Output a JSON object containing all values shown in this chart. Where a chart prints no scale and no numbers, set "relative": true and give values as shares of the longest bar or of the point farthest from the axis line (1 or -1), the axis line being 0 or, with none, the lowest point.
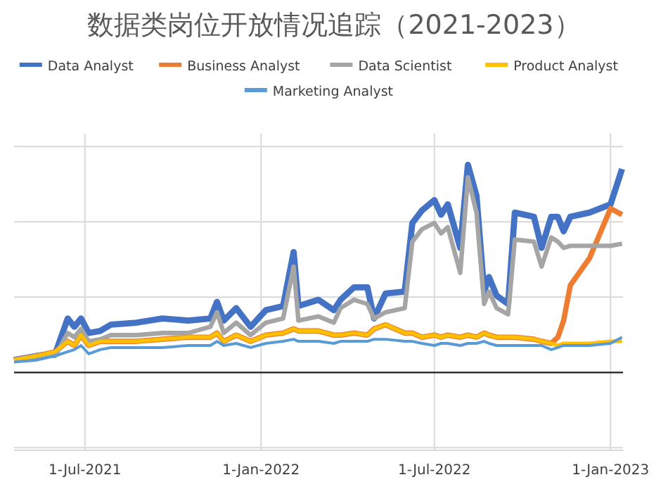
{
  "chart_data": {
    "type": "line",
    "title": "数据类岗位开放情况追踪（2021-2023）",
    "relative": true,
    "legend": "top",
    "grid": true,
    "line_style": "solid",
    "marker": "none",
    "xlim": [
      "2021-04-18",
      "2023-01-14"
    ],
    "xticks": [
      {
        "value": "2021-07-01",
        "label": "1-Jul-2021"
      },
      {
        "value": "2022-01-01",
        "label": "1-Jan-2022"
      },
      {
        "value": "2022-07-01",
        "label": "1-Jul-2022"
      },
      {
        "value": "2023-01-01",
        "label": "1-Jan-2023"
      }
    ],
    "x": [
      "2021-04-18",
      "2021-05-12",
      "2021-05-31",
      "2021-06-13",
      "2021-06-20",
      "2021-06-27",
      "2021-07-05",
      "2021-07-17",
      "2021-07-28",
      "2021-08-24",
      "2021-09-20",
      "2021-10-17",
      "2021-11-09",
      "2021-11-16",
      "2021-11-23",
      "2021-12-06",
      "2021-12-21",
      "2022-01-06",
      "2022-01-24",
      "2022-02-04",
      "2022-02-09",
      "2022-03-02",
      "2022-03-18",
      "2022-03-25",
      "2022-04-08",
      "2022-04-22",
      "2022-04-29",
      "2022-05-11",
      "2022-05-31",
      "2022-06-08",
      "2022-06-18",
      "2022-07-01",
      "2022-07-08",
      "2022-07-15",
      "2022-07-28",
      "2022-08-05",
      "2022-08-14",
      "2022-08-22",
      "2022-08-27",
      "2022-09-04",
      "2022-09-16",
      "2022-09-23",
      "2022-10-13",
      "2022-10-21",
      "2022-10-31",
      "2022-11-07",
      "2022-11-13",
      "2022-11-20",
      "2022-12-10",
      "2023-01-01",
      "2023-01-13"
    ],
    "series": [
      {
        "name": "Data Analyst",
        "color": "#4472c4",
        "values": [
          0.06,
          0.08,
          0.09,
          0.26,
          0.22,
          0.26,
          0.19,
          0.2,
          0.23,
          0.24,
          0.26,
          0.25,
          0.26,
          0.34,
          0.25,
          0.31,
          0.22,
          0.3,
          0.32,
          0.58,
          0.32,
          0.35,
          0.3,
          0.35,
          0.41,
          0.41,
          0.26,
          0.38,
          0.39,
          0.72,
          0.78,
          0.83,
          0.76,
          0.81,
          0.6,
          1.0,
          0.85,
          0.39,
          0.46,
          0.37,
          0.33,
          0.77,
          0.75,
          0.6,
          0.75,
          0.75,
          0.68,
          0.75,
          0.77,
          0.81,
          0.98
        ]
      },
      {
        "name": "Business Analyst",
        "color": "#ed7d31",
        "values": [
          0.06,
          0.08,
          0.1,
          0.15,
          0.13,
          0.18,
          0.13,
          0.15,
          0.15,
          0.15,
          0.16,
          0.17,
          0.17,
          0.19,
          0.15,
          0.18,
          0.15,
          0.18,
          0.19,
          0.21,
          0.2,
          0.2,
          0.18,
          0.18,
          0.19,
          0.18,
          0.21,
          0.23,
          0.19,
          0.19,
          0.17,
          0.18,
          0.17,
          0.18,
          0.17,
          0.18,
          0.17,
          0.19,
          0.18,
          0.17,
          0.17,
          0.17,
          0.16,
          0.15,
          0.14,
          0.17,
          0.25,
          0.42,
          0.55,
          0.79,
          0.76
        ]
      },
      {
        "name": "Data Scientist",
        "color": "#a5a5a5",
        "values": [
          0.06,
          0.08,
          0.08,
          0.19,
          0.17,
          0.21,
          0.15,
          0.16,
          0.18,
          0.18,
          0.19,
          0.19,
          0.22,
          0.29,
          0.19,
          0.24,
          0.18,
          0.24,
          0.26,
          0.51,
          0.25,
          0.27,
          0.24,
          0.31,
          0.35,
          0.33,
          0.26,
          0.29,
          0.31,
          0.63,
          0.69,
          0.72,
          0.67,
          0.7,
          0.48,
          0.94,
          0.77,
          0.33,
          0.39,
          0.31,
          0.28,
          0.64,
          0.63,
          0.51,
          0.65,
          0.63,
          0.6,
          0.61,
          0.61,
          0.61,
          0.62
        ]
      },
      {
        "name": "Product Analyst",
        "color": "#ffc000",
        "values": [
          0.06,
          0.08,
          0.1,
          0.15,
          0.13,
          0.18,
          0.13,
          0.15,
          0.15,
          0.15,
          0.16,
          0.17,
          0.17,
          0.19,
          0.15,
          0.18,
          0.15,
          0.18,
          0.19,
          0.21,
          0.2,
          0.2,
          0.18,
          0.18,
          0.19,
          0.18,
          0.21,
          0.23,
          0.19,
          0.19,
          0.17,
          0.18,
          0.17,
          0.18,
          0.17,
          0.18,
          0.17,
          0.19,
          0.18,
          0.17,
          0.17,
          0.17,
          0.16,
          0.15,
          0.14,
          0.13,
          0.14,
          0.14,
          0.14,
          0.15,
          0.15
        ]
      },
      {
        "name": "Marketing Analyst",
        "color": "#5b9bd5",
        "values": [
          0.05,
          0.06,
          0.08,
          0.1,
          0.11,
          0.13,
          0.09,
          0.11,
          0.12,
          0.12,
          0.12,
          0.13,
          0.13,
          0.15,
          0.13,
          0.14,
          0.12,
          0.14,
          0.15,
          0.16,
          0.15,
          0.15,
          0.14,
          0.15,
          0.15,
          0.15,
          0.16,
          0.16,
          0.15,
          0.15,
          0.14,
          0.13,
          0.14,
          0.14,
          0.13,
          0.14,
          0.14,
          0.15,
          0.14,
          0.13,
          0.13,
          0.13,
          0.13,
          0.13,
          0.11,
          0.12,
          0.13,
          0.13,
          0.13,
          0.14,
          0.17
        ]
      }
    ]
  }
}
